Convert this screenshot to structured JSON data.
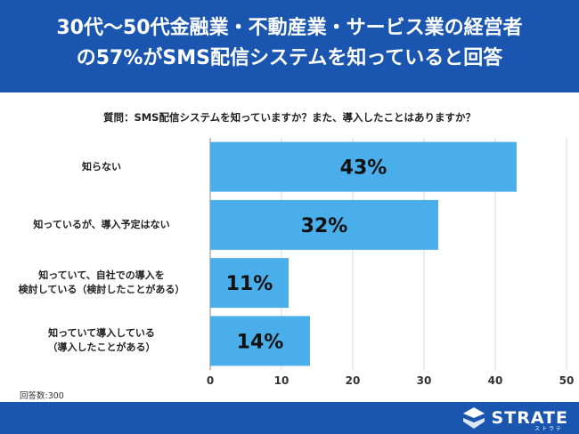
{
  "header": {
    "title_line1": "30代〜50代金融業・不動産業・サービス業の経営者",
    "title_line2": "の57%がSMS配信システムを知っていると回答",
    "bg_color": "#1a56b0"
  },
  "question": "質問：SMS配信システムを知っていますか？また、導入したことはありますか？",
  "respondents": "回答数:300",
  "logo": {
    "name": "STRATE",
    "sub": "ストラテ"
  },
  "chart_data": {
    "type": "bar",
    "orientation": "horizontal",
    "categories": [
      [
        "知らない"
      ],
      [
        "知っているが、導入予定はない"
      ],
      [
        "知っていて、自社での導入を",
        "検討している（検討したことがある）"
      ],
      [
        "知っていて導入している",
        "（導入したことがある）"
      ]
    ],
    "values": [
      43,
      32,
      11,
      14
    ],
    "data_labels": [
      "43%",
      "32%",
      "11%",
      "14%"
    ],
    "xlim": [
      0,
      50
    ],
    "xticks": [
      0,
      10,
      20,
      30,
      40,
      50
    ],
    "grid": true,
    "bar_color": "#4aaeea"
  }
}
